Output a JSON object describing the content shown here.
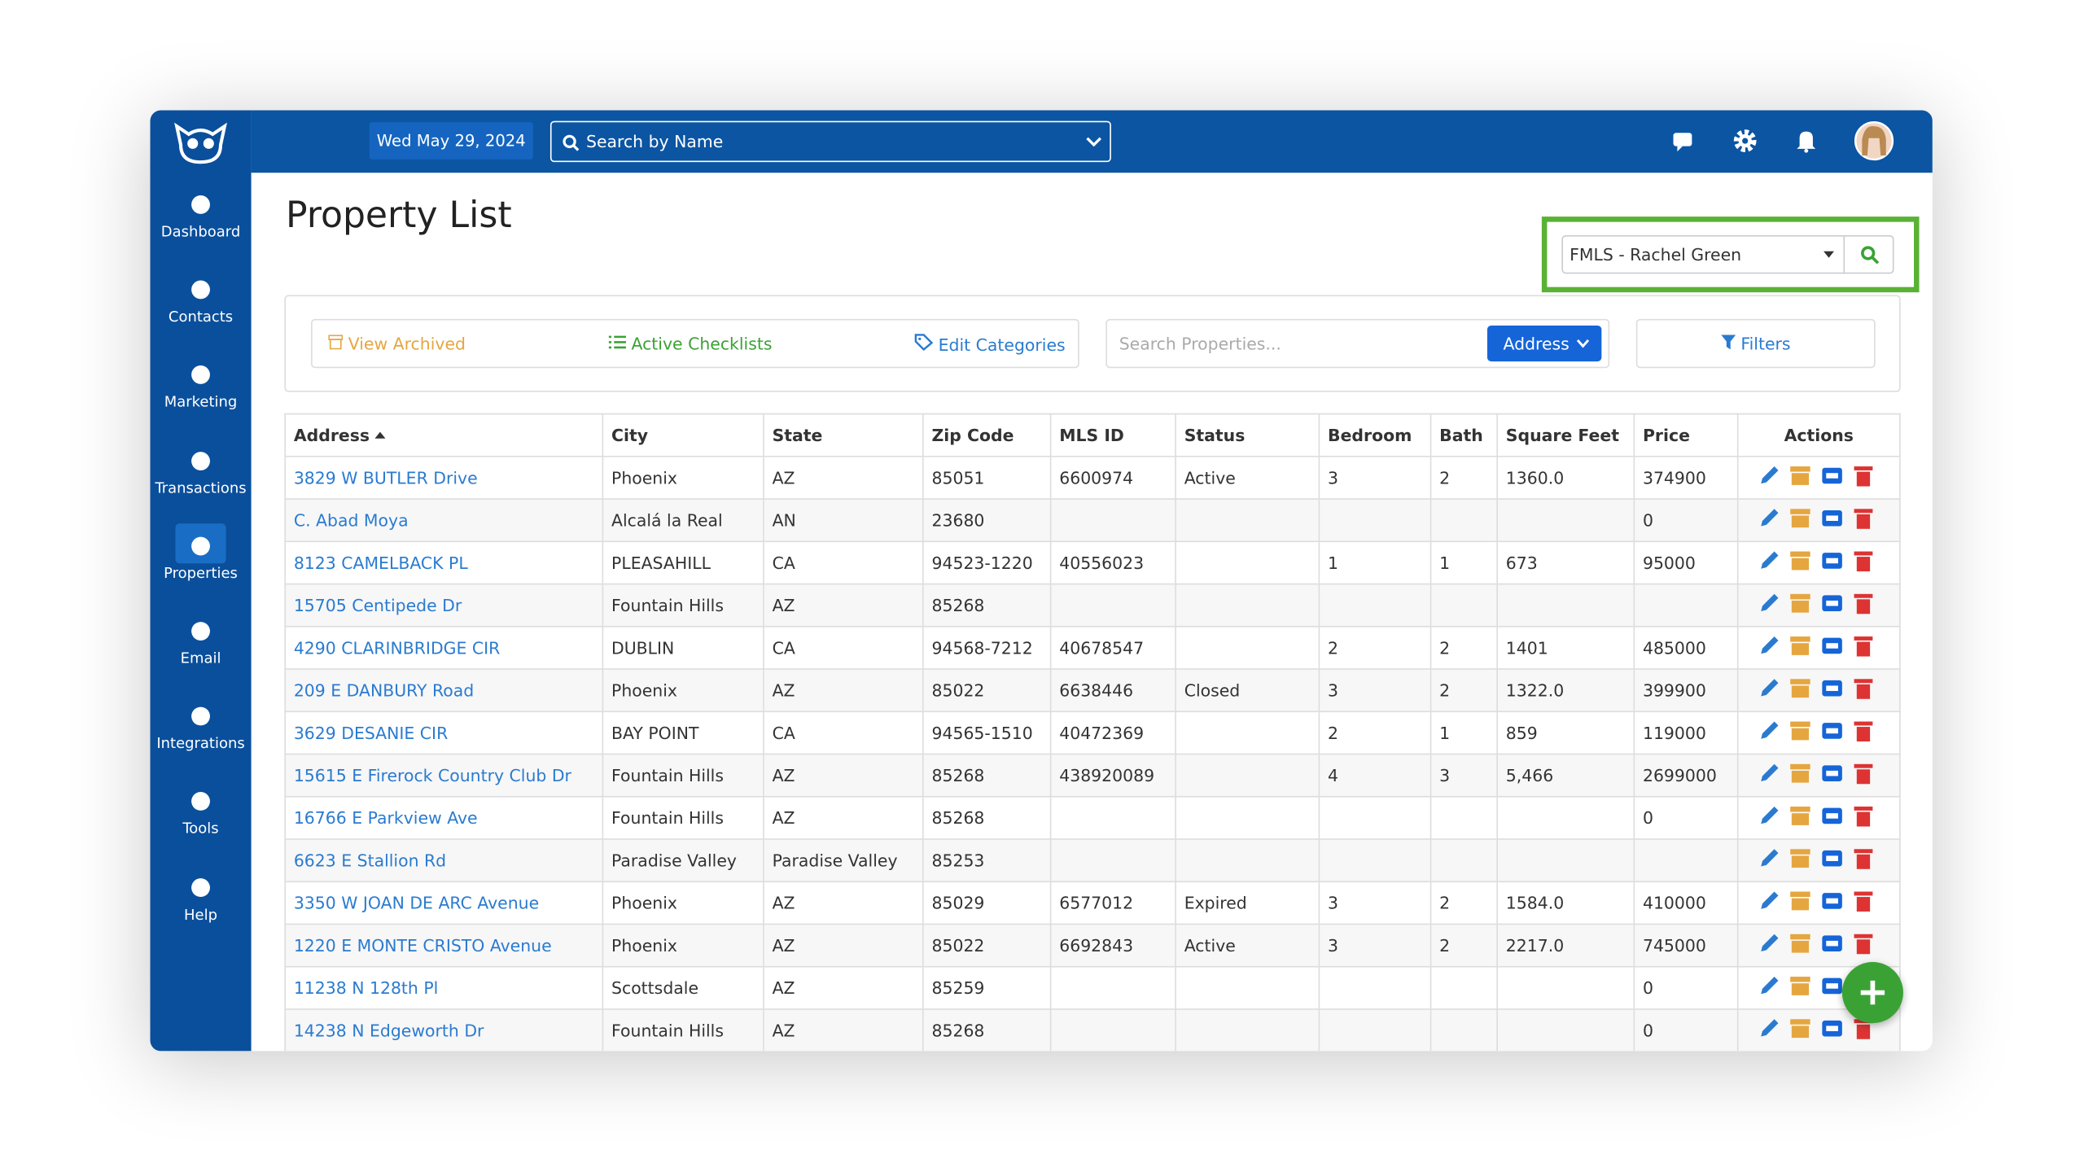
{
  "topbar": {
    "date": "Wed May 29, 2024",
    "search_placeholder": "Search by Name"
  },
  "sidebar": {
    "items": [
      "Dashboard",
      "Contacts",
      "Marketing",
      "Transactions",
      "Properties",
      "Email",
      "Integrations",
      "Tools",
      "Help"
    ]
  },
  "page": {
    "title": "Property List",
    "agent_select": "FMLS - Rachel Green"
  },
  "toolbar": {
    "view_archived": "View Archived",
    "active_checklists": "Active Checklists",
    "edit_categories": "Edit Categories",
    "search_placeholder": "Search Properties...",
    "search_field": "Address",
    "filters": "Filters"
  },
  "table": {
    "columns": [
      "Address",
      "City",
      "State",
      "Zip Code",
      "MLS ID",
      "Status",
      "Bedroom",
      "Bath",
      "Square Feet",
      "Price",
      "Actions"
    ],
    "rows": [
      [
        "3829 W BUTLER Drive",
        "Phoenix",
        "AZ",
        "85051",
        "6600974",
        "Active",
        "3",
        "2",
        "1360.0",
        "374900"
      ],
      [
        "C. Abad Moya",
        "Alcalá la Real",
        "AN",
        "23680",
        null,
        null,
        null,
        null,
        null,
        "0"
      ],
      [
        "8123 CAMELBACK PL",
        "PLEASAHILL",
        "CA",
        "94523-1220",
        "40556023",
        null,
        "1",
        "1",
        "673",
        "95000"
      ],
      [
        "15705 Centipede Dr",
        "Fountain Hills",
        "AZ",
        "85268",
        null,
        null,
        null,
        null,
        null,
        null
      ],
      [
        "4290 CLARINBRIDGE CIR",
        "DUBLIN",
        "CA",
        "94568-7212",
        "40678547",
        null,
        "2",
        "2",
        "1401",
        "485000"
      ],
      [
        "209 E DANBURY Road",
        "Phoenix",
        "AZ",
        "85022",
        "6638446",
        "Closed",
        "3",
        "2",
        "1322.0",
        "399900"
      ],
      [
        "3629 DESANIE CIR",
        "BAY POINT",
        "CA",
        "94565-1510",
        "40472369",
        null,
        "2",
        "1",
        "859",
        "119000"
      ],
      [
        "15615 E Firerock Country Club Dr",
        "Fountain Hills",
        "AZ",
        "85268",
        "438920089",
        null,
        "4",
        "3",
        "5,466",
        "2699000"
      ],
      [
        "16766 E Parkview Ave",
        "Fountain Hills",
        "AZ",
        "85268",
        null,
        null,
        null,
        null,
        null,
        "0"
      ],
      [
        "6623 E Stallion Rd",
        "Paradise Valley",
        "Paradise Valley",
        "85253",
        null,
        null,
        null,
        null,
        null,
        null
      ],
      [
        "3350 W JOAN DE ARC Avenue",
        "Phoenix",
        "AZ",
        "85029",
        "6577012",
        "Expired",
        "3",
        "2",
        "1584.0",
        "410000"
      ],
      [
        "1220 E MONTE CRISTO Avenue",
        "Phoenix",
        "AZ",
        "85022",
        "6692843",
        "Active",
        "3",
        "2",
        "2217.0",
        "745000"
      ],
      [
        "11238 N 128th Pl",
        "Scottsdale",
        "AZ",
        "85259",
        null,
        null,
        null,
        null,
        null,
        "0"
      ],
      [
        "14238 N Edgeworth Dr",
        "Fountain Hills",
        "AZ",
        "85268",
        null,
        null,
        null,
        null,
        null,
        "0"
      ]
    ]
  }
}
